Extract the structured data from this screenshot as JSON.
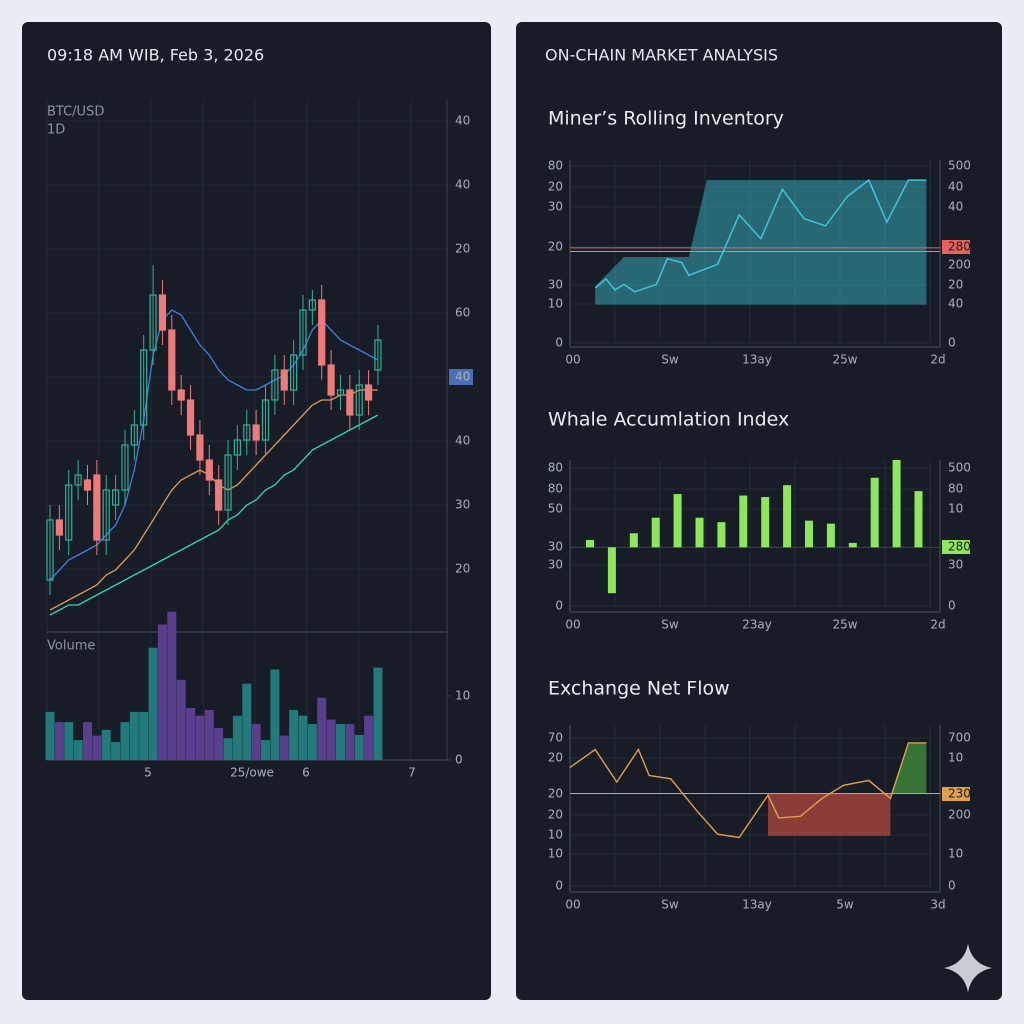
{
  "header": {
    "time": "09:18 AM WIB, Feb 3, 2026",
    "right_title": "ON-CHAIN MARKET ANALYSIS"
  },
  "chart_data": [
    {
      "type": "candlestick",
      "symbol": "BTC/USD",
      "interval": "1D",
      "ylim": [
        0,
        106
      ],
      "up_color": "#2fb39b",
      "down_color": "#ee7a7a",
      "axis_labels": [
        "40",
        "40",
        "20",
        "60",
        "40",
        "40",
        "30",
        "20"
      ],
      "highlight": {
        "index": 4,
        "color": "#4a6fb5"
      },
      "x_labels": [
        "5",
        "25/owe",
        "6",
        "7"
      ],
      "open": [
        10,
        22,
        18,
        29,
        30,
        31,
        18,
        25,
        28,
        37,
        41,
        56,
        67,
        60,
        48,
        46,
        39,
        34,
        30,
        24,
        35,
        38,
        41,
        38,
        46,
        52,
        48,
        55,
        64,
        66,
        53,
        47,
        48,
        43,
        49,
        52
      ],
      "close": [
        22,
        19,
        29,
        31,
        28,
        18,
        28,
        28,
        37,
        41,
        56,
        67,
        60,
        48,
        46,
        39,
        34,
        30,
        24,
        35,
        38,
        41,
        38,
        46,
        52,
        48,
        55,
        64,
        66,
        53,
        47,
        48,
        43,
        49,
        46,
        58
      ],
      "high": [
        25,
        25,
        32,
        34,
        33,
        34,
        31,
        31,
        40,
        44,
        59,
        73,
        70,
        63,
        51,
        49,
        42,
        37,
        33,
        38,
        41,
        44,
        44,
        49,
        55,
        55,
        58,
        67,
        68,
        69,
        56,
        51,
        51,
        52,
        52,
        61
      ],
      "low": [
        7,
        16,
        15,
        26,
        25,
        15,
        15,
        22,
        25,
        34,
        38,
        53,
        57,
        45,
        43,
        36,
        31,
        27,
        21,
        21,
        32,
        35,
        35,
        35,
        43,
        45,
        45,
        52,
        61,
        50,
        44,
        44,
        40,
        40,
        43,
        49
      ],
      "series": [
        {
          "color": "#3f7ee0",
          "values": [
            10,
            12,
            14,
            15,
            16,
            17,
            19,
            21,
            25,
            32,
            42,
            55,
            62,
            64,
            63,
            60,
            57,
            55,
            52,
            50,
            49,
            48,
            48,
            49,
            50,
            51,
            53,
            56,
            60,
            62,
            60,
            58,
            57,
            56,
            55,
            54
          ]
        },
        {
          "color": "#d89a5a",
          "values": [
            4,
            5,
            6,
            7,
            8,
            9,
            11,
            12,
            14,
            16,
            19,
            22,
            25,
            28,
            30,
            31,
            32,
            31,
            29,
            28,
            29,
            31,
            33,
            35,
            37,
            39,
            41,
            43,
            45,
            46,
            46,
            47,
            47,
            48,
            48,
            48
          ]
        },
        {
          "color": "#34d3b0",
          "values": [
            3,
            4,
            5,
            5,
            6,
            7,
            8,
            9,
            10,
            11,
            12,
            13,
            14,
            15,
            16,
            17,
            18,
            19,
            20,
            22,
            23,
            25,
            26,
            28,
            29,
            31,
            32,
            34,
            36,
            37,
            38,
            39,
            40,
            41,
            42,
            43
          ]
        }
      ],
      "volume": {
        "label": "Volume",
        "ylim": [
          0,
          24
        ],
        "yticks": [
          10,
          0
        ],
        "up_color": "#237a7a",
        "down_color": "#5b3f8f",
        "values": [
          7.5,
          5.9,
          5.9,
          3.1,
          5.9,
          3.8,
          4.7,
          2.8,
          5.9,
          7.5,
          7.5,
          17.5,
          21.1,
          23.1,
          12.5,
          8.1,
          6.9,
          7.8,
          5,
          3.4,
          6.9,
          11.9,
          5.6,
          3.1,
          14.1,
          3.8,
          7.8,
          6.9,
          5.6,
          9.7,
          6.3,
          5.6,
          5.6,
          3.9,
          6.9,
          14.4
        ]
      }
    },
    {
      "type": "area",
      "title": "Miner’s Rolling Inventory",
      "ylim": [
        0,
        100
      ],
      "color": "#3fc6d6",
      "left_labels": [
        "80",
        "20",
        "30",
        "20",
        "30",
        "10",
        "0"
      ],
      "right_labels": [
        "500",
        "40",
        "40",
        "280",
        "200",
        "20",
        "40",
        "0"
      ],
      "highlight": {
        "index": 3,
        "color": "#e8615a"
      },
      "x_labels": [
        "00",
        "Sw",
        "13ay",
        "25w",
        "2d"
      ],
      "threshold": {
        "value": 52,
        "color": "#e8615a"
      },
      "baseline": {
        "value": 50,
        "color": "#3fc6d6"
      },
      "area": {
        "x": [
          7,
          15,
          33,
          38,
          99
        ],
        "upper": [
          31,
          47,
          47,
          89,
          89
        ],
        "lower": 21
      },
      "x": [
        7,
        10,
        12.5,
        15,
        18,
        24,
        27,
        31,
        33,
        41,
        47,
        53,
        59,
        65,
        71,
        77,
        83,
        88,
        94,
        99
      ],
      "values": [
        30,
        35,
        29,
        32,
        28,
        32,
        46,
        44,
        37,
        43,
        70,
        57,
        84,
        68,
        64,
        80,
        89,
        66,
        89,
        89
      ]
    },
    {
      "type": "bar",
      "title": "Whale Accumlation Index",
      "ylim": [
        -41,
        59
      ],
      "color": "#8ee65a",
      "left_labels": [
        "80",
        "80",
        "50",
        "30",
        "30",
        "0"
      ],
      "right_labels": [
        "500",
        "80",
        "10",
        "280",
        "30",
        "0"
      ],
      "highlight": {
        "index": 3,
        "color": "#8ee65a"
      },
      "x_labels": [
        "00",
        "Sw",
        "23ay",
        "25w",
        "2d"
      ],
      "values": [
        5,
        -31,
        9.5,
        20,
        36,
        20,
        17,
        35,
        34,
        42,
        18,
        16,
        3,
        47,
        59,
        38
      ]
    },
    {
      "type": "line",
      "title": "Exchange Net Flow",
      "ylim": [
        0,
        100
      ],
      "color": "#e0a04a",
      "left_labels": [
        "70",
        "20",
        "20",
        "20",
        "10",
        "10",
        "0"
      ],
      "right_labels": [
        "700",
        "10",
        "230",
        "200",
        "10",
        "0"
      ],
      "highlight": {
        "index": 2,
        "color": "#e0a04a"
      },
      "x_labels": [
        "00",
        "Sw",
        "13ay",
        "5w",
        "3d"
      ],
      "threshold": {
        "value": 58,
        "color": "#e0a04a"
      },
      "bands": [
        {
          "from": 55,
          "to": 89,
          "low": 32,
          "color": "#b4473c"
        },
        {
          "from": 89,
          "to": 99,
          "color": "#3f8a3a"
        }
      ],
      "x": [
        0,
        7,
        13,
        19,
        22,
        28,
        35,
        41,
        47,
        55,
        58,
        64,
        70,
        76,
        83,
        89,
        94,
        99
      ],
      "values": [
        74,
        85,
        65,
        85,
        69,
        67,
        48,
        33,
        31,
        57,
        43,
        44,
        55,
        63,
        66,
        55,
        89,
        89
      ]
    }
  ]
}
